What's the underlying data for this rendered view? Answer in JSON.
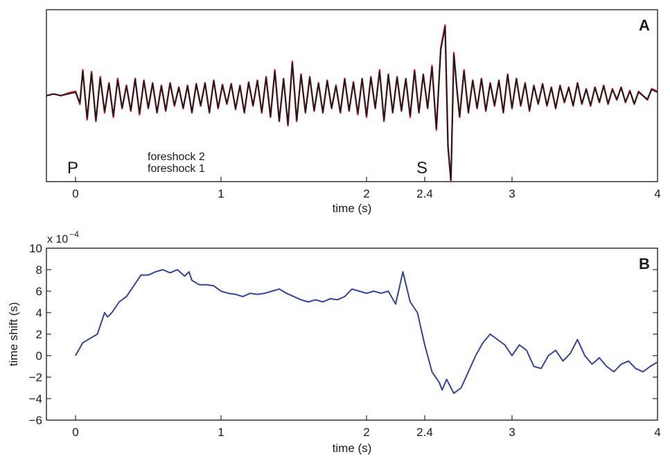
{
  "colors": {
    "foreshock2": "#d8222e",
    "foreshock1": "#1a1a1a",
    "timeshift": "#33449a",
    "axis": "#000000"
  },
  "chart_data": [
    {
      "type": "line",
      "panel_label": "A",
      "title": "",
      "xlabel": "time (s)",
      "ylabel": "",
      "xlim": [
        -0.2,
        4.0
      ],
      "ylim": [
        -1.0,
        1.0
      ],
      "xticks": [
        0,
        1,
        2,
        2.4,
        3,
        4
      ],
      "xtick_labels": [
        "0",
        "1",
        "2",
        "2.4",
        "3",
        "4"
      ],
      "phase_labels": [
        {
          "label": "P",
          "time": 0.0
        },
        {
          "label": "S",
          "time": 2.4
        }
      ],
      "legend": [
        "foreshock 2",
        "foreshock 1"
      ],
      "legend_location": "lower-left",
      "series": [
        {
          "name": "foreshock 2",
          "color_key": "foreshock2",
          "x": [
            -0.2,
            -0.15,
            -0.1,
            -0.05,
            0.0,
            0.03,
            0.05,
            0.08,
            0.11,
            0.14,
            0.17,
            0.2,
            0.23,
            0.26,
            0.29,
            0.32,
            0.35,
            0.38,
            0.41,
            0.44,
            0.47,
            0.5,
            0.53,
            0.56,
            0.59,
            0.62,
            0.65,
            0.68,
            0.71,
            0.74,
            0.77,
            0.8,
            0.83,
            0.86,
            0.89,
            0.92,
            0.95,
            0.98,
            1.01,
            1.04,
            1.07,
            1.1,
            1.13,
            1.16,
            1.19,
            1.22,
            1.25,
            1.28,
            1.31,
            1.34,
            1.37,
            1.4,
            1.43,
            1.46,
            1.49,
            1.52,
            1.55,
            1.58,
            1.61,
            1.64,
            1.67,
            1.7,
            1.73,
            1.76,
            1.79,
            1.82,
            1.85,
            1.88,
            1.91,
            1.94,
            1.97,
            2.0,
            2.03,
            2.06,
            2.09,
            2.12,
            2.15,
            2.18,
            2.21,
            2.24,
            2.27,
            2.3,
            2.33,
            2.36,
            2.39,
            2.42,
            2.45,
            2.48,
            2.51,
            2.54,
            2.56,
            2.58,
            2.6,
            2.62,
            2.64,
            2.67,
            2.7,
            2.73,
            2.76,
            2.79,
            2.82,
            2.85,
            2.88,
            2.91,
            2.94,
            2.97,
            3.0,
            3.03,
            3.06,
            3.09,
            3.12,
            3.15,
            3.18,
            3.21,
            3.24,
            3.27,
            3.3,
            3.33,
            3.36,
            3.39,
            3.42,
            3.45,
            3.48,
            3.51,
            3.54,
            3.57,
            3.6,
            3.63,
            3.66,
            3.69,
            3.72,
            3.75,
            3.78,
            3.81,
            3.84,
            3.87,
            3.9,
            3.93,
            3.96,
            4.0
          ],
          "y": [
            0.0,
            0.02,
            0.0,
            0.03,
            0.05,
            -0.1,
            0.3,
            -0.28,
            0.28,
            -0.3,
            0.22,
            -0.2,
            0.15,
            -0.25,
            0.2,
            -0.15,
            0.12,
            -0.18,
            0.2,
            -0.22,
            0.18,
            -0.15,
            0.15,
            -0.2,
            0.12,
            -0.18,
            0.15,
            -0.12,
            0.1,
            -0.15,
            0.12,
            -0.2,
            0.14,
            -0.12,
            0.15,
            -0.2,
            0.18,
            -0.15,
            0.13,
            -0.1,
            0.14,
            -0.16,
            0.12,
            -0.2,
            0.16,
            -0.12,
            0.18,
            -0.2,
            0.22,
            -0.25,
            0.3,
            -0.3,
            0.2,
            -0.35,
            0.4,
            -0.3,
            0.25,
            -0.2,
            0.22,
            -0.18,
            0.15,
            -0.2,
            0.18,
            -0.15,
            0.12,
            -0.2,
            0.2,
            -0.18,
            0.16,
            -0.22,
            0.2,
            -0.25,
            0.22,
            -0.15,
            0.3,
            -0.3,
            0.25,
            -0.2,
            0.22,
            -0.18,
            0.2,
            -0.25,
            0.3,
            -0.2,
            0.25,
            -0.15,
            0.35,
            -0.4,
            0.55,
            0.82,
            -0.6,
            -1.0,
            0.5,
            0.1,
            -0.25,
            0.3,
            -0.2,
            0.18,
            -0.15,
            0.2,
            -0.18,
            0.15,
            -0.12,
            0.18,
            -0.2,
            0.25,
            -0.15,
            0.2,
            -0.12,
            0.15,
            -0.18,
            0.12,
            -0.1,
            0.14,
            -0.12,
            0.1,
            -0.15,
            0.12,
            -0.08,
            0.1,
            -0.12,
            0.15,
            -0.1,
            0.08,
            -0.12,
            0.1,
            -0.08,
            0.12,
            -0.1,
            0.08,
            -0.05,
            0.1,
            -0.08,
            0.06,
            -0.1,
            0.05,
            0.0,
            -0.05,
            0.08,
            0.05
          ]
        },
        {
          "name": "foreshock 1",
          "color_key": "foreshock1",
          "x": [
            -0.2,
            -0.15,
            -0.1,
            -0.05,
            0.0,
            0.03,
            0.05,
            0.08,
            0.11,
            0.14,
            0.17,
            0.2,
            0.23,
            0.26,
            0.29,
            0.32,
            0.35,
            0.38,
            0.41,
            0.44,
            0.47,
            0.5,
            0.53,
            0.56,
            0.59,
            0.62,
            0.65,
            0.68,
            0.71,
            0.74,
            0.77,
            0.8,
            0.83,
            0.86,
            0.89,
            0.92,
            0.95,
            0.98,
            1.01,
            1.04,
            1.07,
            1.1,
            1.13,
            1.16,
            1.19,
            1.22,
            1.25,
            1.28,
            1.31,
            1.34,
            1.37,
            1.4,
            1.43,
            1.46,
            1.49,
            1.52,
            1.55,
            1.58,
            1.61,
            1.64,
            1.67,
            1.7,
            1.73,
            1.76,
            1.79,
            1.82,
            1.85,
            1.88,
            1.91,
            1.94,
            1.97,
            2.0,
            2.03,
            2.06,
            2.09,
            2.12,
            2.15,
            2.18,
            2.21,
            2.24,
            2.27,
            2.3,
            2.33,
            2.36,
            2.39,
            2.42,
            2.45,
            2.48,
            2.51,
            2.54,
            2.56,
            2.58,
            2.6,
            2.62,
            2.64,
            2.67,
            2.7,
            2.73,
            2.76,
            2.79,
            2.82,
            2.85,
            2.88,
            2.91,
            2.94,
            2.97,
            3.0,
            3.03,
            3.06,
            3.09,
            3.12,
            3.15,
            3.18,
            3.21,
            3.24,
            3.27,
            3.3,
            3.33,
            3.36,
            3.39,
            3.42,
            3.45,
            3.48,
            3.51,
            3.54,
            3.57,
            3.6,
            3.63,
            3.66,
            3.69,
            3.72,
            3.75,
            3.78,
            3.81,
            3.84,
            3.87,
            3.9,
            3.93,
            3.96,
            4.0
          ],
          "y": [
            0.0,
            0.02,
            0.0,
            0.02,
            0.04,
            -0.08,
            0.28,
            -0.26,
            0.26,
            -0.28,
            0.2,
            -0.18,
            0.14,
            -0.23,
            0.18,
            -0.14,
            0.11,
            -0.17,
            0.19,
            -0.2,
            0.17,
            -0.14,
            0.14,
            -0.19,
            0.11,
            -0.17,
            0.14,
            -0.11,
            0.09,
            -0.14,
            0.11,
            -0.19,
            0.13,
            -0.11,
            0.14,
            -0.19,
            0.17,
            -0.14,
            0.12,
            -0.09,
            0.13,
            -0.15,
            0.11,
            -0.19,
            0.15,
            -0.11,
            0.17,
            -0.19,
            0.21,
            -0.24,
            0.28,
            -0.29,
            0.19,
            -0.33,
            0.38,
            -0.28,
            0.24,
            -0.19,
            0.21,
            -0.17,
            0.14,
            -0.19,
            0.17,
            -0.14,
            0.11,
            -0.19,
            0.19,
            -0.17,
            0.15,
            -0.2,
            0.19,
            -0.23,
            0.21,
            -0.14,
            0.28,
            -0.28,
            0.24,
            -0.19,
            0.21,
            -0.17,
            0.19,
            -0.23,
            0.28,
            -0.19,
            0.24,
            -0.14,
            0.33,
            -0.38,
            0.53,
            0.8,
            -0.58,
            -0.98,
            0.48,
            0.09,
            -0.24,
            0.28,
            -0.19,
            0.17,
            -0.14,
            0.19,
            -0.17,
            0.14,
            -0.11,
            0.17,
            -0.19,
            0.24,
            -0.14,
            0.19,
            -0.11,
            0.14,
            -0.17,
            0.11,
            -0.09,
            0.13,
            -0.11,
            0.09,
            -0.14,
            0.11,
            -0.07,
            0.09,
            -0.11,
            0.14,
            -0.09,
            0.07,
            -0.11,
            0.09,
            -0.07,
            0.11,
            -0.09,
            0.07,
            -0.04,
            0.09,
            -0.07,
            0.05,
            -0.09,
            0.04,
            0.0,
            -0.04,
            0.07,
            0.04
          ]
        }
      ]
    },
    {
      "type": "line",
      "panel_label": "B",
      "title": "",
      "xlabel": "time (s)",
      "ylabel": "time shift (s)",
      "scale_label": "x 10",
      "scale_exponent": "−4",
      "xlim": [
        -0.2,
        4.0
      ],
      "ylim": [
        -6,
        10
      ],
      "xticks": [
        0,
        1,
        2,
        2.4,
        3,
        4
      ],
      "xtick_labels": [
        "0",
        "1",
        "2",
        "2.4",
        "3",
        "4"
      ],
      "yticks": [
        -6,
        -4,
        -2,
        0,
        2,
        4,
        6,
        8,
        10
      ],
      "ytick_labels": [
        "−6",
        "−4",
        "−2",
        "0",
        "2",
        "4",
        "6",
        "8",
        "10"
      ],
      "series": [
        {
          "name": "time shift",
          "color_key": "timeshift",
          "x": [
            0.0,
            0.05,
            0.1,
            0.15,
            0.2,
            0.22,
            0.25,
            0.3,
            0.35,
            0.4,
            0.45,
            0.5,
            0.55,
            0.6,
            0.65,
            0.7,
            0.75,
            0.78,
            0.8,
            0.85,
            0.9,
            0.95,
            1.0,
            1.05,
            1.1,
            1.15,
            1.2,
            1.25,
            1.3,
            1.35,
            1.4,
            1.45,
            1.5,
            1.55,
            1.6,
            1.65,
            1.7,
            1.75,
            1.8,
            1.85,
            1.9,
            1.95,
            2.0,
            2.05,
            2.1,
            2.15,
            2.2,
            2.25,
            2.3,
            2.35,
            2.4,
            2.45,
            2.5,
            2.52,
            2.55,
            2.6,
            2.65,
            2.7,
            2.75,
            2.8,
            2.85,
            2.9,
            2.95,
            3.0,
            3.05,
            3.1,
            3.15,
            3.2,
            3.25,
            3.3,
            3.35,
            3.4,
            3.45,
            3.5,
            3.55,
            3.6,
            3.65,
            3.7,
            3.75,
            3.8,
            3.85,
            3.9,
            3.95,
            4.0
          ],
          "y": [
            0.0,
            1.2,
            1.6,
            2.0,
            4.0,
            3.6,
            4.0,
            5.0,
            5.5,
            6.5,
            7.5,
            7.5,
            7.8,
            8.0,
            7.7,
            8.0,
            7.4,
            7.8,
            7.0,
            6.6,
            6.6,
            6.5,
            6.0,
            5.8,
            5.7,
            5.5,
            5.8,
            5.7,
            5.8,
            6.0,
            6.2,
            5.8,
            5.5,
            5.2,
            5.0,
            5.2,
            5.0,
            5.3,
            5.2,
            5.5,
            6.2,
            6.0,
            5.8,
            6.0,
            5.8,
            6.0,
            4.8,
            7.8,
            5.0,
            4.0,
            1.0,
            -1.5,
            -2.5,
            -3.2,
            -2.2,
            -3.5,
            -3.0,
            -1.5,
            0.0,
            1.2,
            2.0,
            1.5,
            1.0,
            0.0,
            1.0,
            0.5,
            -1.0,
            -1.2,
            0.0,
            0.5,
            -0.5,
            0.2,
            1.5,
            0.0,
            -0.8,
            -0.2,
            -1.0,
            -1.5,
            -0.8,
            -0.5,
            -1.2,
            -1.5,
            -1.0,
            -0.6
          ]
        }
      ]
    }
  ]
}
